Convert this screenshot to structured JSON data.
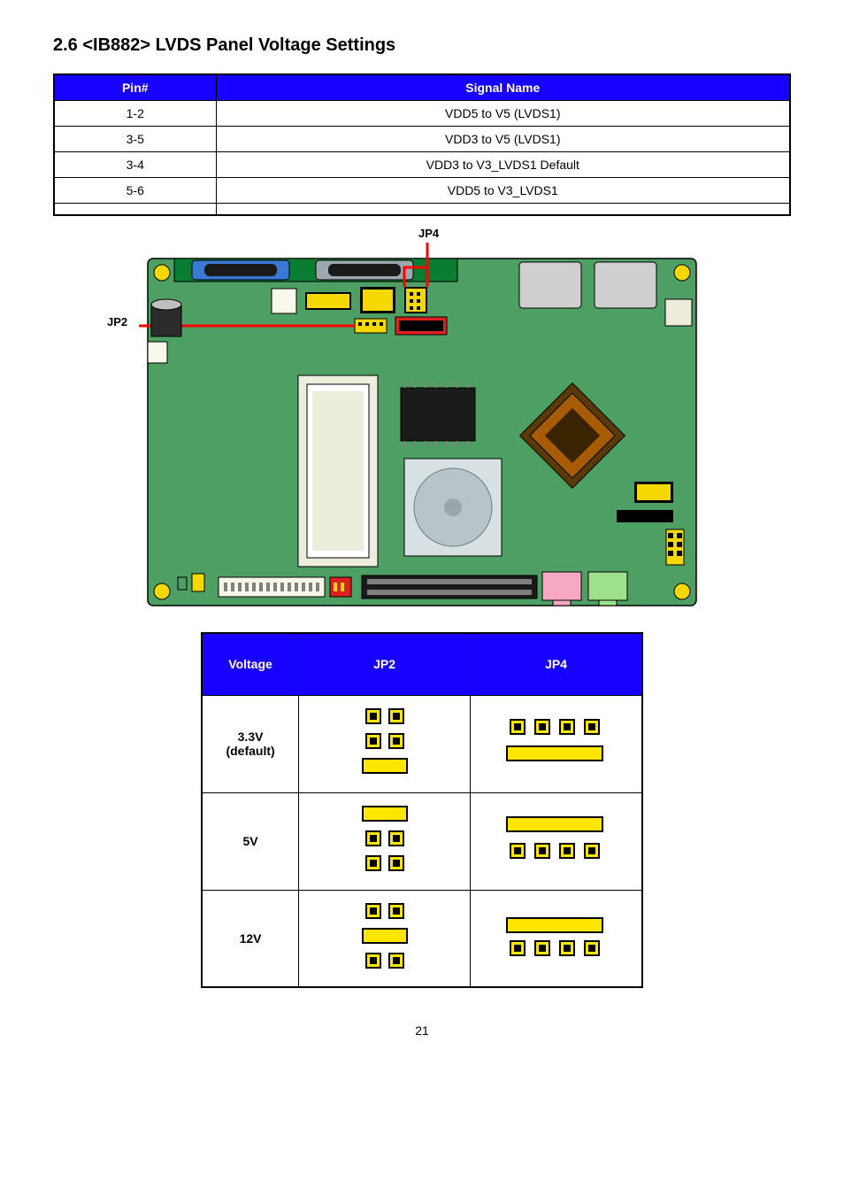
{
  "section_title": "2.6 <IB882>  LVDS Panel Voltage Settings",
  "pin_table": {
    "headers": [
      "Pin#",
      "Signal Name"
    ],
    "rows": [
      [
        "1-2",
        "VDD5 to V5 (LVDS1)"
      ],
      [
        "3-5",
        "VDD3 to V5 (LVDS1)"
      ],
      [
        "3-4",
        "VDD3 to V3_LVDS1 Default"
      ],
      [
        "5-6",
        "VDD5 to V3_LVDS1"
      ],
      [
        "",
        ""
      ]
    ]
  },
  "callouts": {
    "jp2": "JP2",
    "jp4": "JP4"
  },
  "board": {
    "pcb_color": "#4e9f63",
    "pcb_stroke": "#000000",
    "hole_color": "#f5d800",
    "capacitor_body": "#2b2b2b",
    "capacitor_top": "#bfbfbf",
    "line_color": "#ff0000",
    "connector_strip": "#0a7d33",
    "dsub_blue": "#3a78d6",
    "dsub_gray": "#9da7ae",
    "header_yellow": "#f5d800",
    "header_black": "#1a1a1a",
    "header_red": "#e02020",
    "white_conn": "#f7f7ea",
    "chip_black": "#1a1a1a",
    "chip_gray": "#808080",
    "cpu_body": "#a85c00",
    "round_chip": "#b7c4c9",
    "audio_pink": "#f7a8c2",
    "audio_green": "#9fe08a",
    "slot_body": "#ededde",
    "big_conn": "#cfcfcf",
    "small_label": "#ffffff"
  },
  "jumper_table": {
    "headers": [
      "Voltage",
      "JP2",
      "JP4"
    ],
    "rows": [
      {
        "label": "3.3V\n(default)",
        "jp2_variant": "a",
        "jp4_variant": "a"
      },
      {
        "label": "5V",
        "jp2_variant": "b",
        "jp4_variant": "b"
      },
      {
        "label": "12V",
        "jp2_variant": "c",
        "jp4_variant": "c"
      }
    ],
    "colors": {
      "pad_open_fill": "#ffe600",
      "pad_open_stroke": "#000000",
      "pad_short_fill": "#ffe600",
      "pad_hole": "#000000"
    }
  },
  "page_number": "21"
}
